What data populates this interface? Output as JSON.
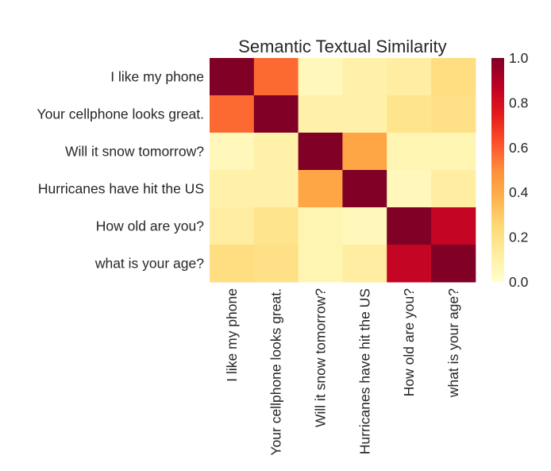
{
  "chart_data": {
    "type": "heatmap",
    "title": "Semantic Textual Similarity",
    "row_labels": [
      "I like my phone",
      "Your cellphone looks great.",
      "Will it snow tomorrow?",
      "Hurricanes have hit the US",
      "How old are you?",
      "what is your age?"
    ],
    "col_labels": [
      "I like my phone",
      "Your cellphone looks great.",
      "Will it snow tomorrow?",
      "Hurricanes have hit the US",
      "How old are you?",
      "what is your age?"
    ],
    "values": [
      [
        1.0,
        0.57,
        0.05,
        0.1,
        0.12,
        0.22
      ],
      [
        0.57,
        1.0,
        0.1,
        0.1,
        0.18,
        0.2
      ],
      [
        0.05,
        0.1,
        1.0,
        0.42,
        0.07,
        0.07
      ],
      [
        0.1,
        0.1,
        0.42,
        1.0,
        0.05,
        0.12
      ],
      [
        0.12,
        0.18,
        0.07,
        0.05,
        1.0,
        0.85
      ],
      [
        0.22,
        0.2,
        0.07,
        0.12,
        0.85,
        1.0
      ]
    ],
    "colormap": "YlOrRd",
    "vmin": 0.0,
    "vmax": 1.0,
    "colorbar_ticks": [
      "0.0",
      "0.2",
      "0.4",
      "0.6",
      "0.8",
      "1.0"
    ],
    "colorbar_stops": [
      "#ffffcc",
      "#ffeda0",
      "#fed976",
      "#feb24c",
      "#fd8d3c",
      "#fc4e2a",
      "#e31a1c",
      "#bd0026",
      "#800026"
    ]
  }
}
